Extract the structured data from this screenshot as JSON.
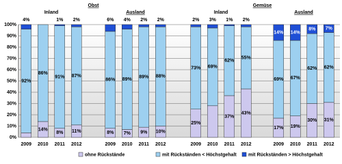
{
  "chart_data": {
    "type": "stacked_bar",
    "sections": [
      {
        "title": "Obst",
        "groups": [
          "Inland",
          "Ausland"
        ]
      },
      {
        "title": "Gemüse",
        "groups": [
          "Inland",
          "Ausland"
        ]
      }
    ],
    "categories": [
      "2009",
      "2010",
      "2011",
      "2012",
      "2009",
      "2010",
      "2011",
      "2012",
      "2009",
      "2010",
      "2011",
      "2012",
      "2009",
      "2010",
      "2011",
      "2012"
    ],
    "series": [
      {
        "name": "ohne Rückstände",
        "color": "#cdc8ee",
        "values": [
          4,
          14,
          8,
          11,
          8,
          7,
          9,
          10,
          25,
          28,
          37,
          43,
          17,
          19,
          30,
          31
        ],
        "value_labels": [
          null,
          "14%",
          "8%",
          "11%",
          "8%",
          "7%",
          "9%",
          "10%",
          "25%",
          null,
          "37%",
          "43%",
          "17%",
          "19%",
          "30%",
          "31%"
        ]
      },
      {
        "name": "mit Rückständen < Höchstgehalt",
        "color": "#9dd0f0",
        "values": [
          92,
          86,
          91,
          87,
          86,
          89,
          89,
          88,
          73,
          69,
          62,
          55,
          69,
          67,
          62,
          62
        ],
        "value_labels": [
          "92%",
          "86%",
          "91%",
          "87%",
          "86%",
          "89%",
          "89%",
          "88%",
          "73%",
          "69%",
          "62%",
          "55%",
          "69%",
          "67%",
          "62%",
          "62%"
        ]
      },
      {
        "name": "mit Rückständen > Höchstgehalt",
        "color": "#1f4fd6",
        "values": [
          4,
          0,
          1,
          2,
          6,
          4,
          2,
          2,
          2,
          3,
          1,
          2,
          14,
          14,
          8,
          7
        ],
        "value_labels": [
          "4%",
          null,
          "1%",
          "2%",
          "6%",
          "4%",
          "2%",
          "2%",
          "2%",
          "3%",
          "1%",
          "2%",
          "14%",
          "14%",
          "8%",
          "7%"
        ]
      }
    ],
    "ylim": [
      0,
      100
    ],
    "yticks": [
      {
        "value": 0,
        "label": "0%"
      },
      {
        "value": 10,
        "label": "10%"
      },
      {
        "value": 20,
        "label": "20%"
      },
      {
        "value": 30,
        "label": "30%"
      },
      {
        "value": 40,
        "label": "40%"
      },
      {
        "value": 50,
        "label": "50%"
      },
      {
        "value": 60,
        "label": "60%"
      },
      {
        "value": 70,
        "label": "70%"
      },
      {
        "value": 80,
        "label": "80%"
      },
      {
        "value": 90,
        "label": "90%"
      },
      {
        "value": 100,
        "label": "100%"
      }
    ],
    "grid": true
  }
}
